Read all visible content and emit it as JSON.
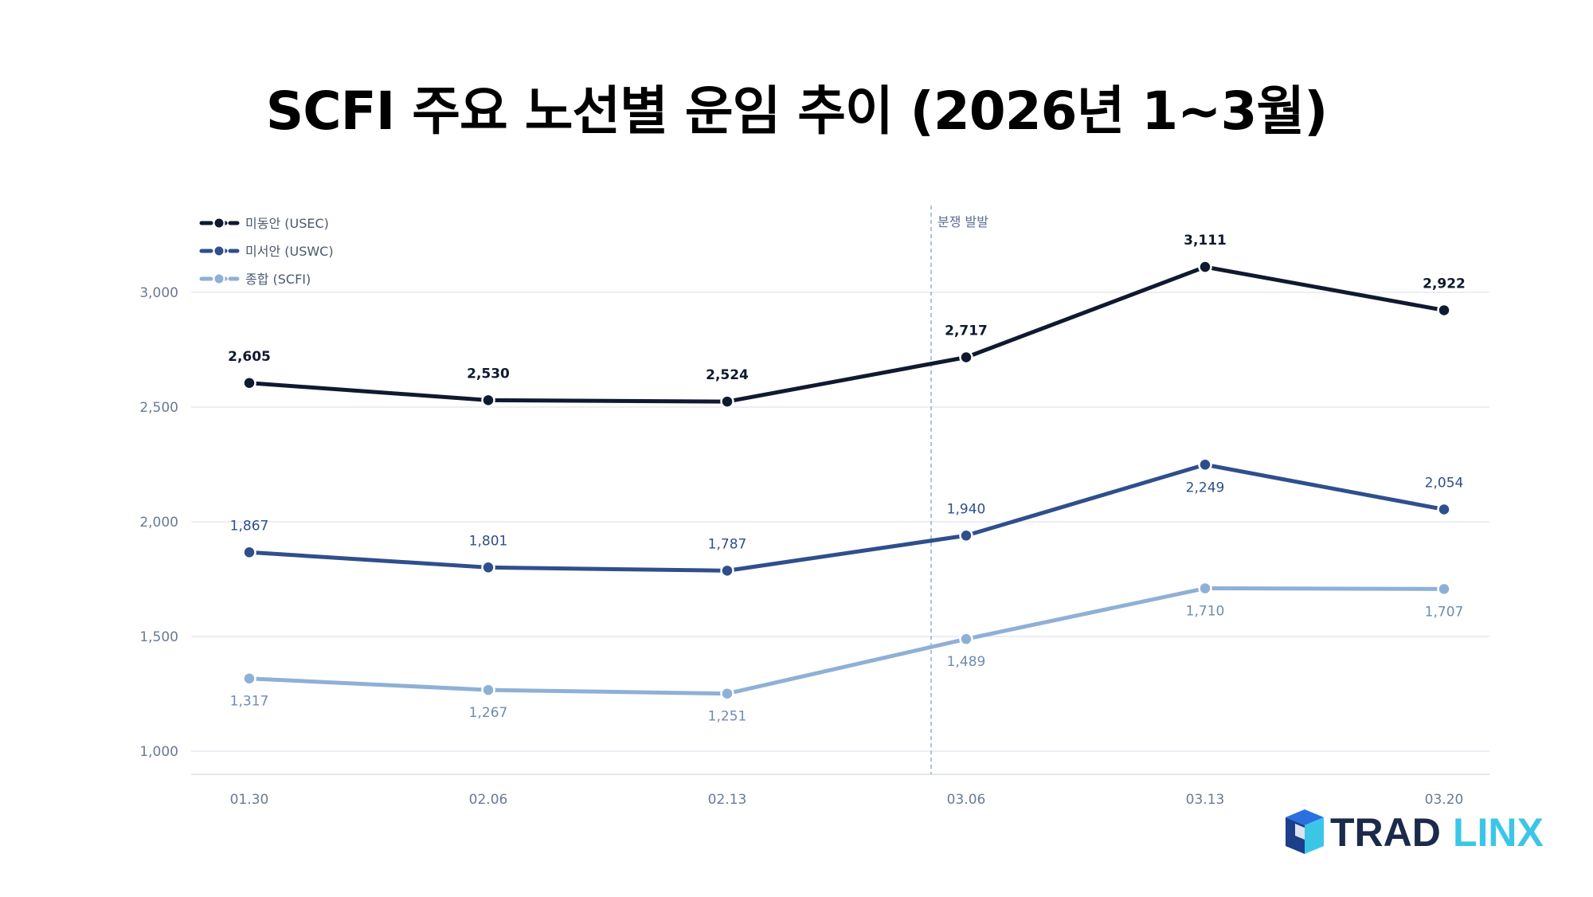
{
  "title": "SCFI 주요 노선별 운임 추이 (2026년 1~3월)",
  "logo": {
    "text_dark": "TRAD",
    "text_light": "LINX"
  },
  "chart_data": {
    "type": "line",
    "title": "SCFI 주요 노선별 운임 추이 (2026년 1~3월)",
    "xlabel": "",
    "ylabel": "",
    "categories": [
      "01.30",
      "02.06",
      "02.13",
      "03.06",
      "03.13",
      "03.20"
    ],
    "ylim": [
      900,
      3300
    ],
    "yticks": [
      1000,
      1500,
      2000,
      2500,
      3000
    ],
    "ytick_labels": [
      "1,000",
      "1,500",
      "2,000",
      "2,500",
      "3,000"
    ],
    "grid": true,
    "legend_position": "top-left",
    "annotation": {
      "label": "분쟁 발발",
      "between": [
        "02.13",
        "03.06"
      ]
    },
    "series": [
      {
        "name": "미동안 (USEC)",
        "color": "#0f1a30",
        "values": [
          2605,
          2530,
          2524,
          2717,
          3111,
          2922
        ],
        "labels": [
          "2,605",
          "2,530",
          "2,524",
          "2,717",
          "3,111",
          "2,922"
        ],
        "label_position": "above"
      },
      {
        "name": "미서안 (USWC)",
        "color": "#2f4f8c",
        "values": [
          1867,
          1801,
          1787,
          1940,
          2249,
          2054
        ],
        "labels": [
          "1,867",
          "1,801",
          "1,787",
          "1,940",
          "2,249",
          "2,054"
        ],
        "label_position": "mixed"
      },
      {
        "name": "종합 (SCFI)",
        "color": "#8fb0d6",
        "values": [
          1317,
          1267,
          1251,
          1489,
          1710,
          1707
        ],
        "labels": [
          "1,317",
          "1,267",
          "1,251",
          "1,489",
          "1,710",
          "1,707"
        ],
        "label_position": "below"
      }
    ]
  }
}
